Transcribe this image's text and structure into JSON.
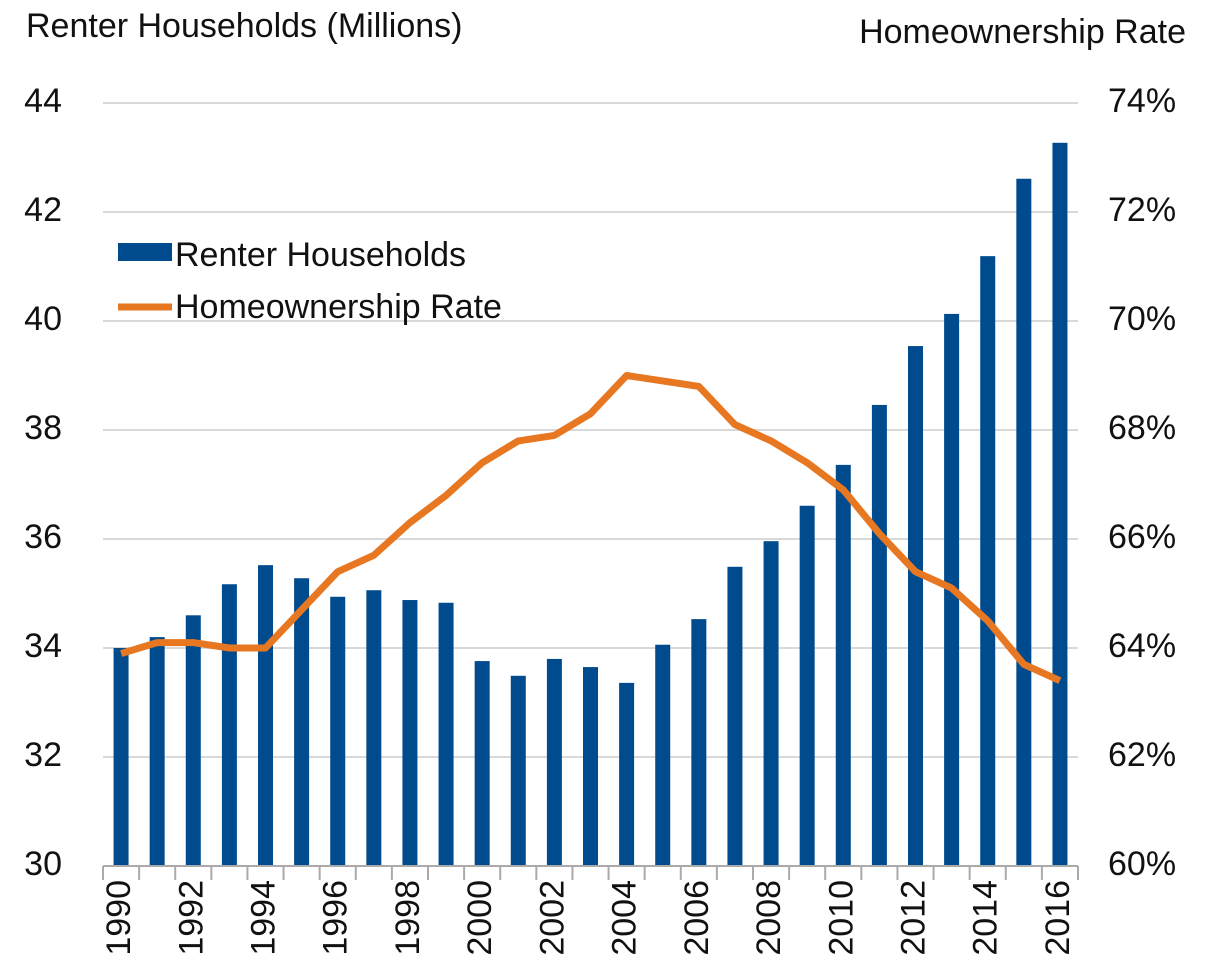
{
  "chart_data": {
    "type": "bar-line",
    "y_label": "Renter Households (Millions)",
    "y2_label": "Homeownership Rate",
    "categories": [
      "1990",
      null,
      "1992",
      null,
      "1994",
      null,
      "1996",
      null,
      "1998",
      null,
      "2000",
      null,
      "2002",
      null,
      "2004",
      null,
      "2006",
      null,
      "2008",
      null,
      "2010",
      null,
      "2012",
      null,
      "2014",
      null,
      "2016"
    ],
    "series": [
      {
        "name": "Renter Households",
        "type": "bar",
        "color": "#004b8d",
        "values": [
          34.0,
          34.2,
          34.6,
          35.17,
          35.52,
          35.28,
          34.94,
          35.06,
          34.88,
          34.83,
          33.76,
          33.49,
          33.8,
          33.65,
          33.36,
          34.06,
          34.53,
          35.49,
          35.96,
          36.61,
          37.36,
          38.46,
          39.54,
          40.13,
          41.19,
          42.61,
          43.27
        ]
      },
      {
        "name": "Homeownership Rate",
        "type": "line",
        "axis": "y2",
        "color": "#e87722",
        "values": [
          63.9,
          64.1,
          64.1,
          64.0,
          64.0,
          64.7,
          65.4,
          65.7,
          66.3,
          66.8,
          67.4,
          67.8,
          67.9,
          68.3,
          69.0,
          68.9,
          68.8,
          68.1,
          67.8,
          67.4,
          66.9,
          66.1,
          65.4,
          65.1,
          64.5,
          63.7,
          63.4
        ]
      }
    ],
    "ylim": [
      30,
      44
    ],
    "yticks": [
      30,
      32,
      34,
      36,
      38,
      40,
      42,
      44
    ],
    "y2lim": [
      60,
      74
    ],
    "y2ticks": [
      {
        "value": 60,
        "label": "60%"
      },
      {
        "value": 62,
        "label": "62%"
      },
      {
        "value": 64,
        "label": "64%"
      },
      {
        "value": 66,
        "label": "66%"
      },
      {
        "value": 68,
        "label": "68%"
      },
      {
        "value": 70,
        "label": "70%"
      },
      {
        "value": 72,
        "label": "72%"
      },
      {
        "value": 74,
        "label": "74%"
      }
    ],
    "grid": true,
    "legend": "upper-left"
  }
}
